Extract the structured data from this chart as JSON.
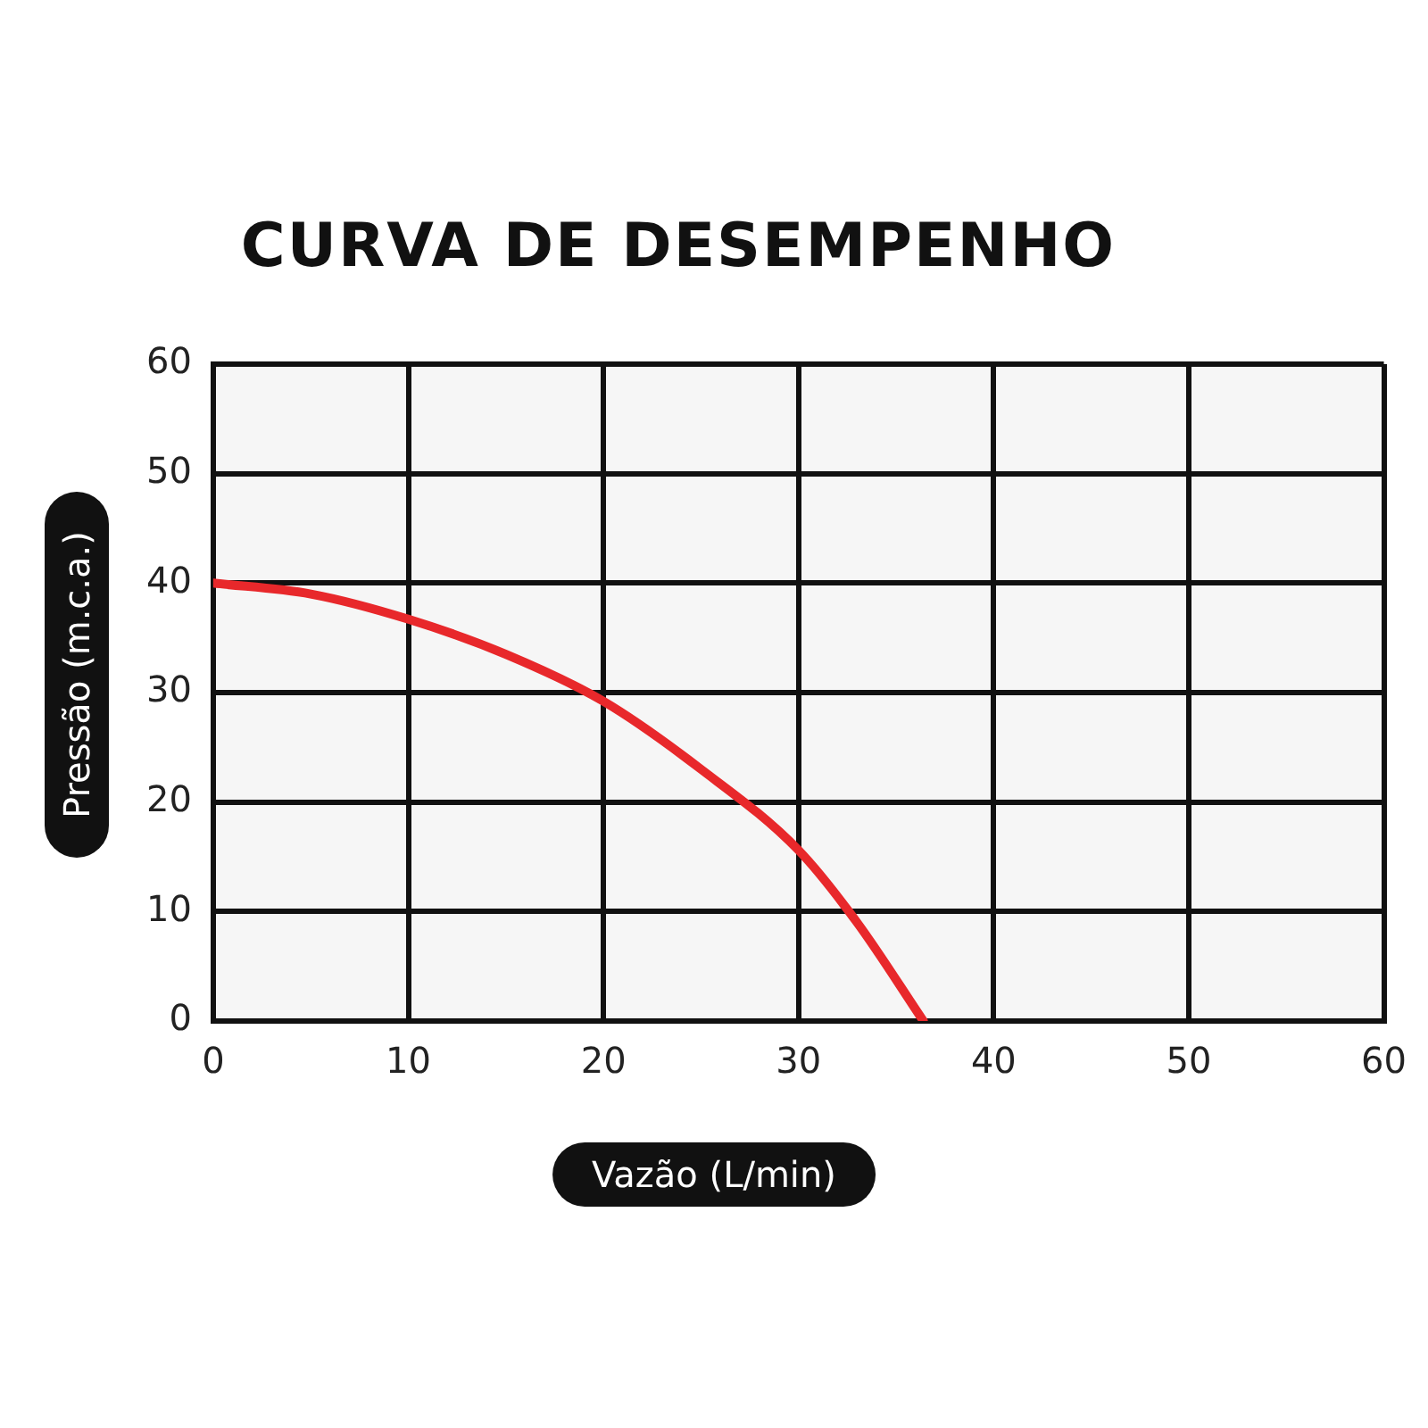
{
  "chart_data": {
    "type": "line",
    "title": "CURVA DE DESEMPENHO",
    "xlabel": "Vazão (L/min)",
    "ylabel": "Pressão (m.c.a.)",
    "x": [
      0,
      5,
      10,
      15,
      20,
      25,
      30,
      33,
      36.4
    ],
    "series": [
      {
        "color": "#e8282b",
        "values": [
          40,
          39,
          36.7,
          33.5,
          29.2,
          23,
          15.6,
          9,
          0
        ]
      }
    ],
    "xlim": [
      0,
      60
    ],
    "xticks": [
      0,
      10,
      20,
      30,
      40,
      50,
      60
    ],
    "ylim": [
      0,
      60
    ],
    "yticks": [
      0,
      10,
      20,
      30,
      40,
      50,
      60
    ],
    "grid": true,
    "marker": "none",
    "line_style": "solid"
  }
}
